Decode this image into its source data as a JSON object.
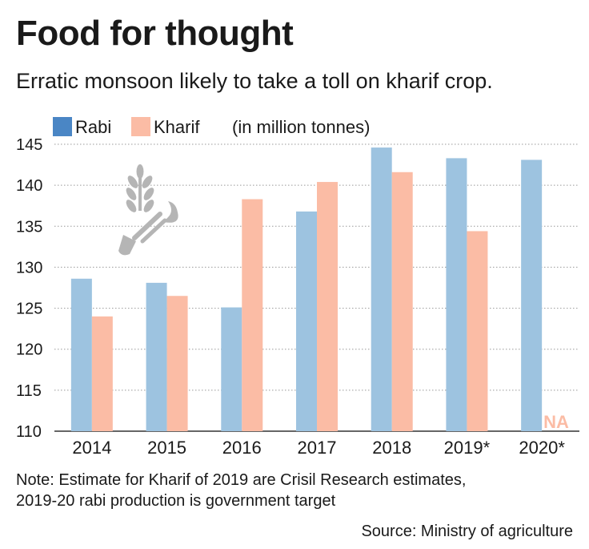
{
  "header": {
    "title": "Food for thought",
    "subtitle": "Erratic monsoon likely to take a toll on kharif crop."
  },
  "chart_data": {
    "type": "bar",
    "categories": [
      "2014",
      "2015",
      "2016",
      "2017",
      "2018",
      "2019*",
      "2020*"
    ],
    "series": [
      {
        "name": "Rabi",
        "color": "#9dc3e0",
        "values": [
          128.6,
          128.1,
          125.1,
          136.8,
          144.6,
          143.3,
          143.1
        ]
      },
      {
        "name": "Kharif",
        "color": "#fbbca5",
        "values": [
          124.0,
          126.5,
          138.3,
          140.4,
          141.6,
          134.4,
          null
        ]
      }
    ],
    "legend_swatch_colors": [
      "#4a86c5",
      "#fbbca5"
    ],
    "unit_label": "(in million tonnes)",
    "ylim": [
      110,
      145
    ],
    "yticks": [
      110,
      115,
      120,
      125,
      130,
      135,
      140,
      145
    ],
    "grid": true,
    "legend_position": "top-left",
    "missing_label": "NA",
    "missing_color": "#fbbca5",
    "icon": "wheat-and-sickle-icon"
  },
  "footer": {
    "note_line1": "Note: Estimate for Kharif of 2019 are Crisil Research estimates,",
    "note_line2": "2019-20 rabi production is government target",
    "source": "Source: Ministry of agriculture"
  }
}
